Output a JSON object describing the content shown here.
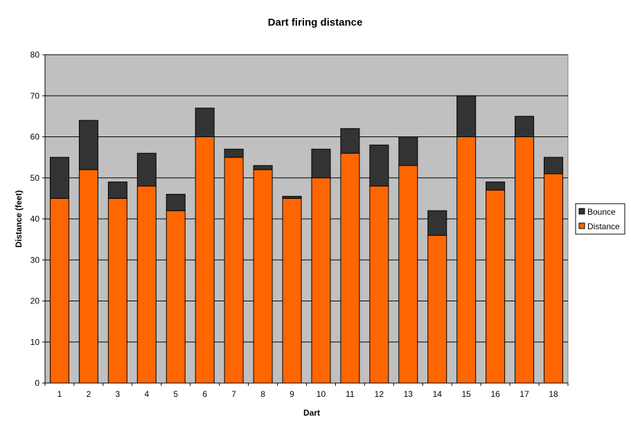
{
  "chart_data": {
    "type": "bar",
    "stacked": true,
    "title": "Dart firing distance",
    "xlabel": "Dart",
    "ylabel": "Distance (feet)",
    "ylim": [
      0,
      80
    ],
    "yticks": [
      0,
      10,
      20,
      30,
      40,
      50,
      60,
      70,
      80
    ],
    "grid": true,
    "legend_position": "right",
    "categories": [
      "1",
      "2",
      "3",
      "4",
      "5",
      "6",
      "7",
      "8",
      "9",
      "10",
      "11",
      "12",
      "13",
      "14",
      "15",
      "16",
      "17",
      "18"
    ],
    "series": [
      {
        "name": "Distance",
        "color": "#FF6600",
        "values": [
          45,
          52,
          45,
          48,
          42,
          60,
          55,
          52,
          45,
          50,
          56,
          48,
          53,
          36,
          60,
          47,
          60,
          51
        ]
      },
      {
        "name": "Bounce",
        "color": "#333333",
        "values": [
          10,
          12,
          4,
          8,
          4,
          7,
          2,
          1,
          0.5,
          7,
          6,
          10,
          7,
          6,
          10,
          2,
          5,
          4
        ]
      }
    ],
    "plot_background": "#C0C0C0"
  }
}
